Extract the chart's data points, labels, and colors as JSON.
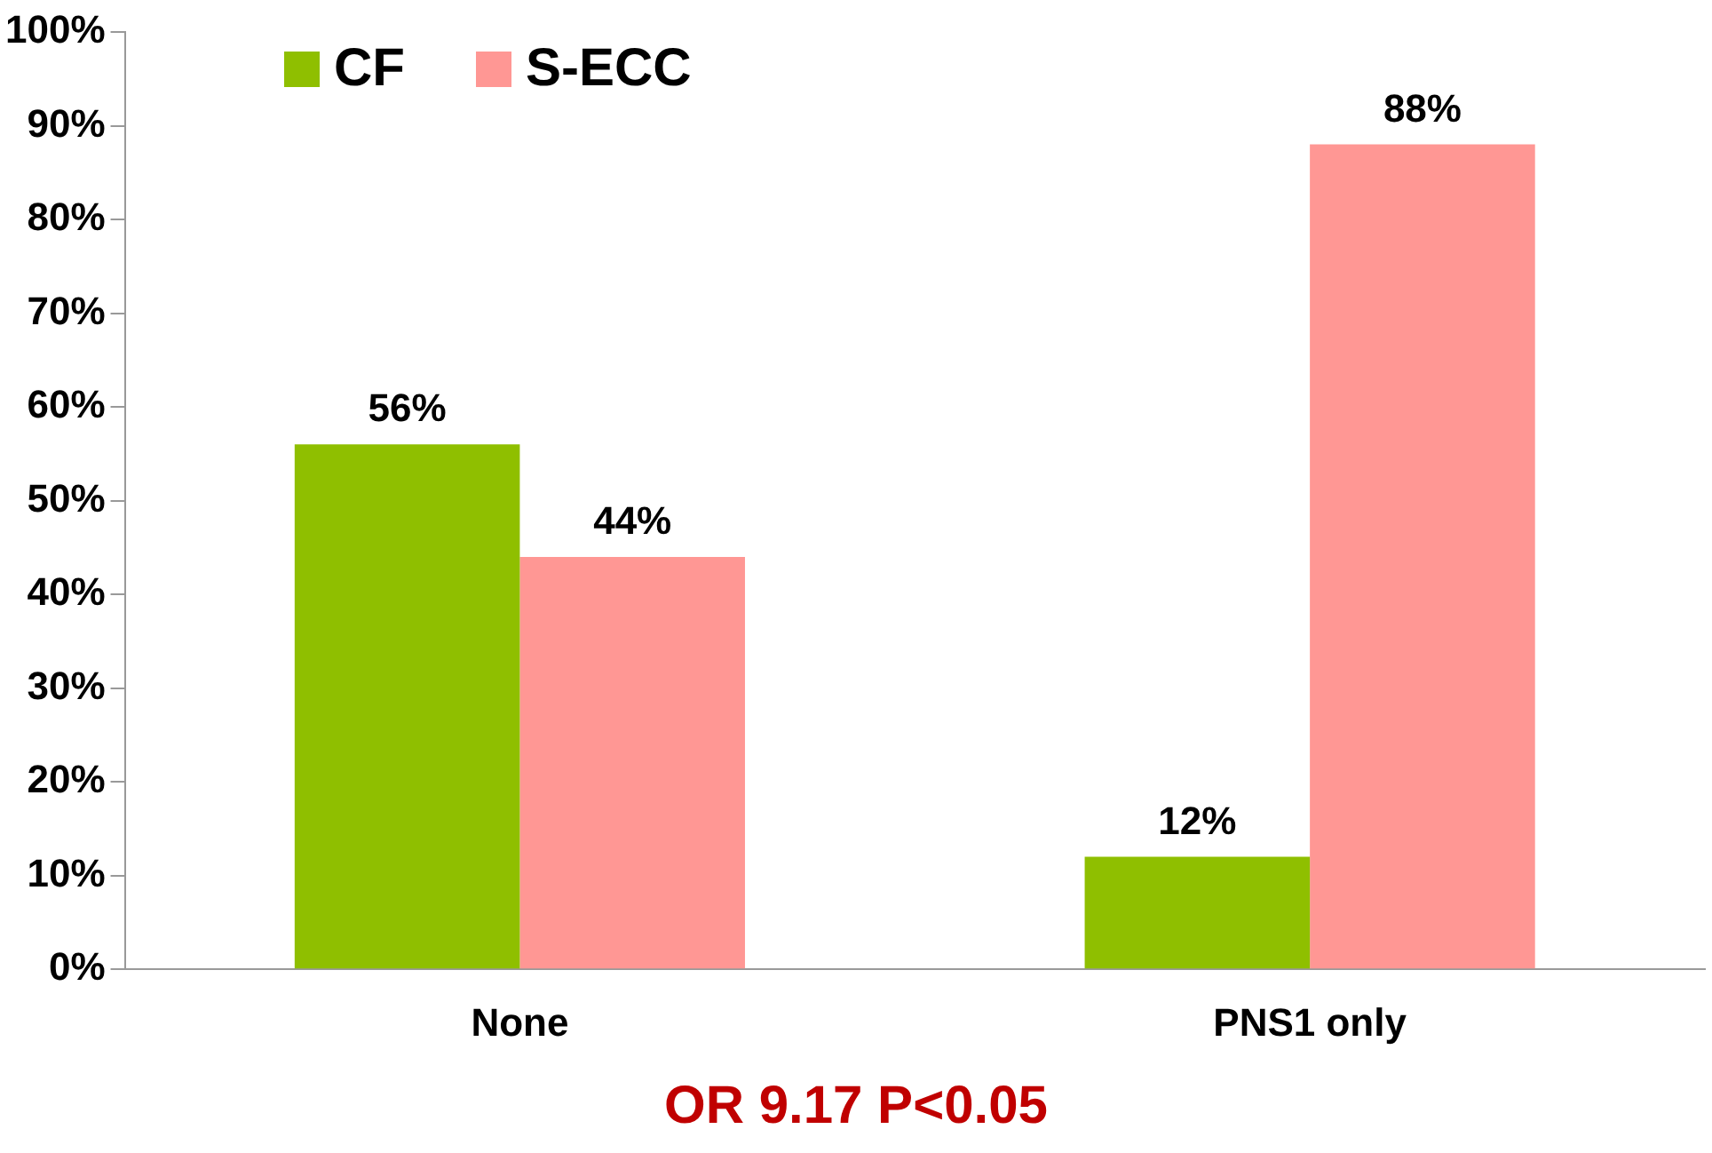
{
  "chart_data": {
    "type": "bar",
    "categories": [
      "None",
      "PNS1 only"
    ],
    "series": [
      {
        "name": "CF",
        "color": "#8fbf00",
        "values": [
          56,
          12
        ],
        "value_labels": [
          "56%",
          "12%"
        ]
      },
      {
        "name": "S-ECC",
        "color": "#ff9794",
        "values": [
          44,
          88
        ],
        "value_labels": [
          "44%",
          "88%"
        ]
      }
    ],
    "ylim": [
      0,
      100
    ],
    "yticks": [
      {
        "value": 0,
        "label": "0%"
      },
      {
        "value": 10,
        "label": "10%"
      },
      {
        "value": 20,
        "label": "20%"
      },
      {
        "value": 30,
        "label": "30%"
      },
      {
        "value": 40,
        "label": "40%"
      },
      {
        "value": 50,
        "label": "50%"
      },
      {
        "value": 60,
        "label": "60%"
      },
      {
        "value": 70,
        "label": "70%"
      },
      {
        "value": 80,
        "label": "80%"
      },
      {
        "value": 90,
        "label": "90%"
      },
      {
        "value": 100,
        "label": "100%"
      }
    ],
    "grid": false,
    "legend": "top left",
    "annotations": [
      "OR 9.17 P<0.05"
    ]
  }
}
